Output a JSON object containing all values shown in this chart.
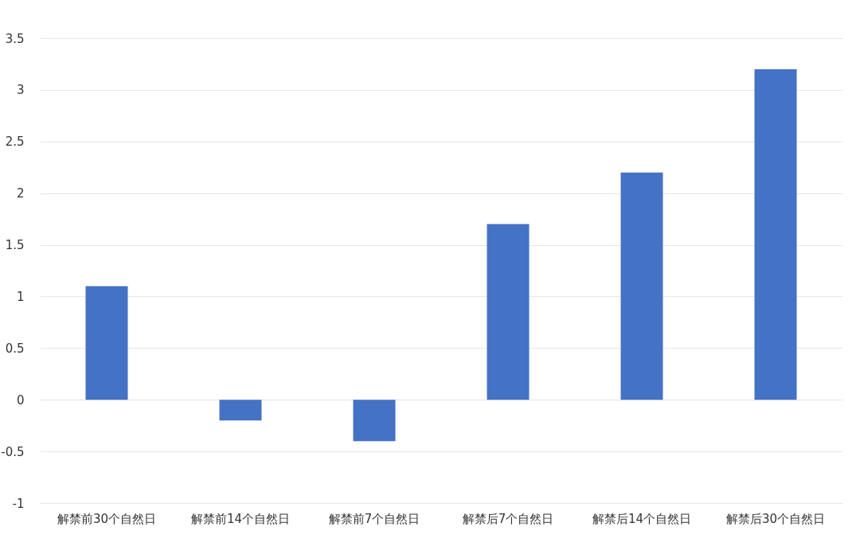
{
  "chart_data": {
    "type": "bar",
    "categories": [
      "解禁前30个自然日",
      "解禁前14个自然日",
      "解禁前7个自然日",
      "解禁后7个自然日",
      "解禁后14个自然日",
      "解禁后30个自然日"
    ],
    "values": [
      1.1,
      -0.2,
      -0.4,
      1.7,
      2.2,
      3.2
    ],
    "color": "#4472c4",
    "ylim": [
      -1,
      3.5
    ],
    "yticks": [
      -1,
      -0.5,
      0,
      0.5,
      1,
      1.5,
      2,
      2.5,
      3,
      3.5
    ],
    "grid": "y"
  }
}
